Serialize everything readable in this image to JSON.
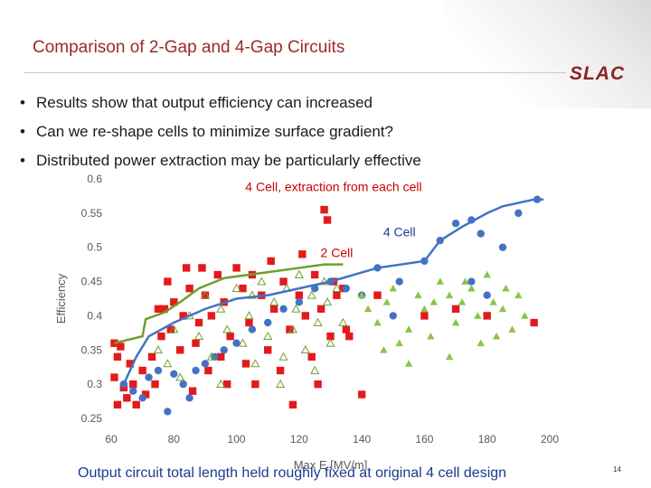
{
  "slide": {
    "title": "Comparison of 2-Gap and 4-Gap Circuits",
    "logo": "SLAC",
    "bullets": [
      "Results show that output efficiency can increased",
      "Can we re-shape cells to minimize surface gradient?",
      "Distributed power extraction may be particularly effective"
    ],
    "bullet_glyph": "•",
    "footer": "Output circuit total length held roughly fixed at original 4 cell design",
    "page_number": "14",
    "colors": {
      "title": "#9c2a2a",
      "footer": "#1f3a8f",
      "logo": "#8b2323"
    }
  },
  "chart_data": {
    "type": "scatter",
    "title": "",
    "xlabel": "Max E [MV/m]",
    "ylabel": "Efficiency",
    "xlim": [
      60,
      200
    ],
    "ylim": [
      0.25,
      0.6
    ],
    "xticks": [
      60,
      80,
      100,
      120,
      140,
      160,
      180,
      200
    ],
    "yticks": [
      0.25,
      0.3,
      0.35,
      0.4,
      0.45,
      0.5,
      0.55,
      0.6
    ],
    "xtick_labels": [
      "60",
      "80",
      "100",
      "120",
      "140",
      "160",
      "180",
      "200"
    ],
    "ytick_labels": [
      "0.25",
      "0.3",
      "0.35",
      "0.4",
      "0.45",
      "0.5",
      "0.55",
      "0.6"
    ],
    "grid": false,
    "annotations": [
      {
        "text": "4 Cell, extraction from each cell",
        "x": 131,
        "y": 0.582,
        "color": "#cc0000"
      },
      {
        "text": "4 Cell",
        "x": 152,
        "y": 0.516,
        "color": "#1f3a8f"
      },
      {
        "text": "2 Cell",
        "x": 132,
        "y": 0.486,
        "color": "#cc0000"
      }
    ],
    "series": [
      {
        "name": "4 Cell, extraction from each cell",
        "marker": "square",
        "color": "#e31a1c",
        "points": [
          [
            61,
            0.36
          ],
          [
            62,
            0.34
          ],
          [
            63,
            0.355
          ],
          [
            61,
            0.31
          ],
          [
            64,
            0.295
          ],
          [
            62,
            0.27
          ],
          [
            65,
            0.28
          ],
          [
            66,
            0.33
          ],
          [
            67,
            0.3
          ],
          [
            68,
            0.27
          ],
          [
            70,
            0.32
          ],
          [
            71,
            0.285
          ],
          [
            73,
            0.34
          ],
          [
            74,
            0.3
          ],
          [
            75,
            0.41
          ],
          [
            76,
            0.37
          ],
          [
            77,
            0.41
          ],
          [
            78,
            0.45
          ],
          [
            79,
            0.38
          ],
          [
            80,
            0.42
          ],
          [
            82,
            0.35
          ],
          [
            83,
            0.4
          ],
          [
            84,
            0.47
          ],
          [
            85,
            0.44
          ],
          [
            86,
            0.29
          ],
          [
            87,
            0.36
          ],
          [
            88,
            0.39
          ],
          [
            89,
            0.47
          ],
          [
            90,
            0.43
          ],
          [
            91,
            0.32
          ],
          [
            92,
            0.4
          ],
          [
            94,
            0.46
          ],
          [
            95,
            0.34
          ],
          [
            96,
            0.42
          ],
          [
            97,
            0.3
          ],
          [
            98,
            0.37
          ],
          [
            100,
            0.47
          ],
          [
            102,
            0.44
          ],
          [
            103,
            0.33
          ],
          [
            104,
            0.39
          ],
          [
            105,
            0.46
          ],
          [
            106,
            0.3
          ],
          [
            108,
            0.43
          ],
          [
            110,
            0.35
          ],
          [
            111,
            0.48
          ],
          [
            112,
            0.41
          ],
          [
            114,
            0.32
          ],
          [
            115,
            0.45
          ],
          [
            117,
            0.38
          ],
          [
            118,
            0.27
          ],
          [
            120,
            0.43
          ],
          [
            121,
            0.49
          ],
          [
            122,
            0.4
          ],
          [
            124,
            0.34
          ],
          [
            125,
            0.46
          ],
          [
            126,
            0.3
          ],
          [
            127,
            0.41
          ],
          [
            128,
            0.555
          ],
          [
            129,
            0.54
          ],
          [
            130,
            0.37
          ],
          [
            131,
            0.45
          ],
          [
            132,
            0.43
          ],
          [
            134,
            0.44
          ],
          [
            135,
            0.38
          ],
          [
            136,
            0.37
          ],
          [
            140,
            0.285
          ],
          [
            145,
            0.43
          ],
          [
            160,
            0.4
          ],
          [
            170,
            0.41
          ],
          [
            180,
            0.4
          ],
          [
            195,
            0.39
          ]
        ]
      },
      {
        "name": "4 Cell",
        "marker": "circle",
        "color": "#4472c4",
        "line": [
          [
            64,
            0.3
          ],
          [
            68,
            0.34
          ],
          [
            72,
            0.37
          ],
          [
            80,
            0.39
          ],
          [
            90,
            0.41
          ],
          [
            100,
            0.425
          ],
          [
            110,
            0.43
          ],
          [
            120,
            0.44
          ],
          [
            130,
            0.45
          ],
          [
            145,
            0.47
          ],
          [
            160,
            0.48
          ],
          [
            165,
            0.51
          ],
          [
            172,
            0.53
          ],
          [
            180,
            0.55
          ],
          [
            185,
            0.56
          ],
          [
            195,
            0.57
          ],
          [
            198,
            0.57
          ]
        ],
        "points": [
          [
            64,
            0.3
          ],
          [
            67,
            0.29
          ],
          [
            70,
            0.28
          ],
          [
            72,
            0.31
          ],
          [
            75,
            0.32
          ],
          [
            78,
            0.26
          ],
          [
            80,
            0.315
          ],
          [
            83,
            0.3
          ],
          [
            85,
            0.28
          ],
          [
            87,
            0.32
          ],
          [
            90,
            0.33
          ],
          [
            93,
            0.34
          ],
          [
            96,
            0.35
          ],
          [
            100,
            0.36
          ],
          [
            105,
            0.38
          ],
          [
            110,
            0.39
          ],
          [
            115,
            0.41
          ],
          [
            120,
            0.42
          ],
          [
            125,
            0.44
          ],
          [
            130,
            0.45
          ],
          [
            135,
            0.44
          ],
          [
            140,
            0.43
          ],
          [
            145,
            0.47
          ],
          [
            152,
            0.45
          ],
          [
            160,
            0.48
          ],
          [
            165,
            0.51
          ],
          [
            170,
            0.535
          ],
          [
            175,
            0.54
          ],
          [
            178,
            0.52
          ],
          [
            185,
            0.5
          ],
          [
            190,
            0.55
          ],
          [
            196,
            0.57
          ],
          [
            175,
            0.45
          ],
          [
            180,
            0.43
          ],
          [
            150,
            0.4
          ]
        ]
      },
      {
        "name": "2 Cell",
        "marker": "triangle-open",
        "color": "#6f9e2f",
        "line": [
          [
            61,
            0.36
          ],
          [
            70,
            0.37
          ],
          [
            71,
            0.395
          ],
          [
            77,
            0.405
          ],
          [
            82,
            0.42
          ],
          [
            88,
            0.44
          ],
          [
            96,
            0.455
          ],
          [
            104,
            0.46
          ],
          [
            112,
            0.465
          ],
          [
            120,
            0.47
          ],
          [
            128,
            0.475
          ],
          [
            134,
            0.475
          ]
        ],
        "points": [
          [
            75,
            0.35
          ],
          [
            78,
            0.33
          ],
          [
            80,
            0.38
          ],
          [
            82,
            0.31
          ],
          [
            85,
            0.4
          ],
          [
            88,
            0.37
          ],
          [
            90,
            0.43
          ],
          [
            92,
            0.34
          ],
          [
            95,
            0.41
          ],
          [
            97,
            0.38
          ],
          [
            100,
            0.44
          ],
          [
            102,
            0.36
          ],
          [
            104,
            0.4
          ],
          [
            106,
            0.33
          ],
          [
            108,
            0.45
          ],
          [
            110,
            0.37
          ],
          [
            112,
            0.42
          ],
          [
            114,
            0.3
          ],
          [
            116,
            0.44
          ],
          [
            118,
            0.38
          ],
          [
            120,
            0.46
          ],
          [
            122,
            0.35
          ],
          [
            124,
            0.43
          ],
          [
            126,
            0.39
          ],
          [
            128,
            0.45
          ],
          [
            130,
            0.36
          ],
          [
            132,
            0.44
          ],
          [
            134,
            0.39
          ],
          [
            125,
            0.32
          ],
          [
            115,
            0.34
          ],
          [
            95,
            0.3
          ],
          [
            105,
            0.43
          ],
          [
            119,
            0.41
          ],
          [
            129,
            0.42
          ]
        ]
      },
      {
        "name": "2 Cell (filled)",
        "marker": "triangle",
        "color": "#8bc34a",
        "points": [
          [
            140,
            0.43
          ],
          [
            142,
            0.41
          ],
          [
            145,
            0.39
          ],
          [
            148,
            0.42
          ],
          [
            150,
            0.44
          ],
          [
            152,
            0.36
          ],
          [
            155,
            0.38
          ],
          [
            158,
            0.43
          ],
          [
            160,
            0.41
          ],
          [
            162,
            0.37
          ],
          [
            165,
            0.45
          ],
          [
            168,
            0.43
          ],
          [
            170,
            0.39
          ],
          [
            172,
            0.42
          ],
          [
            175,
            0.44
          ],
          [
            177,
            0.4
          ],
          [
            180,
            0.46
          ],
          [
            182,
            0.42
          ],
          [
            185,
            0.41
          ],
          [
            188,
            0.38
          ],
          [
            190,
            0.43
          ],
          [
            192,
            0.4
          ],
          [
            178,
            0.36
          ],
          [
            183,
            0.37
          ],
          [
            168,
            0.34
          ],
          [
            155,
            0.33
          ],
          [
            147,
            0.35
          ],
          [
            163,
            0.42
          ],
          [
            173,
            0.45
          ],
          [
            186,
            0.44
          ]
        ]
      }
    ]
  }
}
